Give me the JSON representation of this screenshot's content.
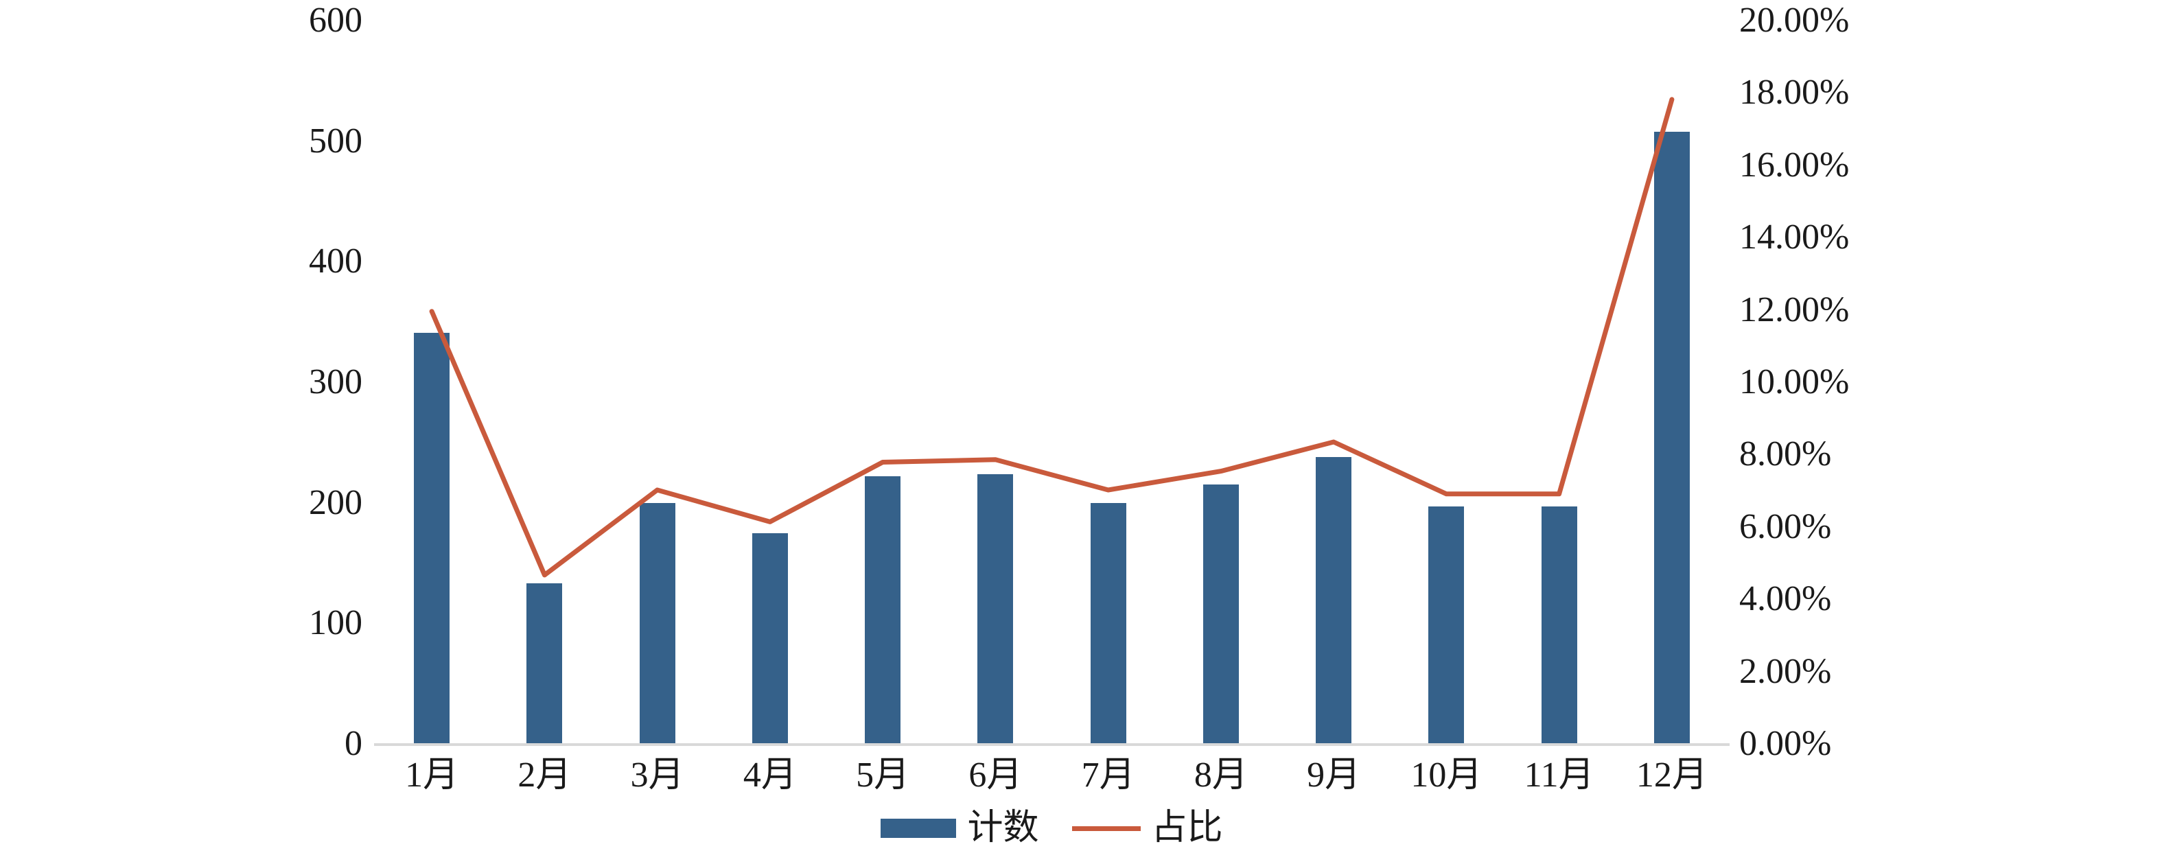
{
  "chart_data": {
    "type": "bar",
    "subtype": "combo-bar-line",
    "title": "",
    "categories": [
      "1月",
      "2月",
      "3月",
      "4月",
      "5月",
      "6月",
      "7月",
      "8月",
      "9月",
      "10月",
      "11月",
      "12月"
    ],
    "series": [
      {
        "name": "计数",
        "type": "bar",
        "axis": "left",
        "values": [
          341,
          133,
          200,
          175,
          222,
          224,
          200,
          215,
          238,
          197,
          197,
          508
        ]
      },
      {
        "name": "占比",
        "type": "line",
        "axis": "right",
        "values_percent": [
          11.96,
          4.67,
          7.02,
          6.14,
          7.79,
          7.86,
          7.02,
          7.54,
          8.35,
          6.91,
          6.91,
          17.82
        ]
      }
    ],
    "left_axis": {
      "min": 0,
      "max": 600,
      "step": 100,
      "ticks_top_to_bottom": [
        "600",
        "500",
        "400",
        "300",
        "200",
        "100",
        "0"
      ]
    },
    "right_axis": {
      "min_label": "0.00%",
      "max_label": "20.00%",
      "step_percent": 2,
      "ticks_top_to_bottom": [
        "20.00%",
        "18.00%",
        "16.00%",
        "14.00%",
        "12.00%",
        "10.00%",
        "8.00%",
        "6.00%",
        "4.00%",
        "2.00%",
        "0.00%"
      ]
    },
    "legend_position": "bottom",
    "grid": false,
    "colors": {
      "bar": "#35618A",
      "line": "#C95A3C",
      "axis_line": "#D9D9D9",
      "text": "#1A1A1A",
      "background": "#FFFFFF"
    }
  }
}
